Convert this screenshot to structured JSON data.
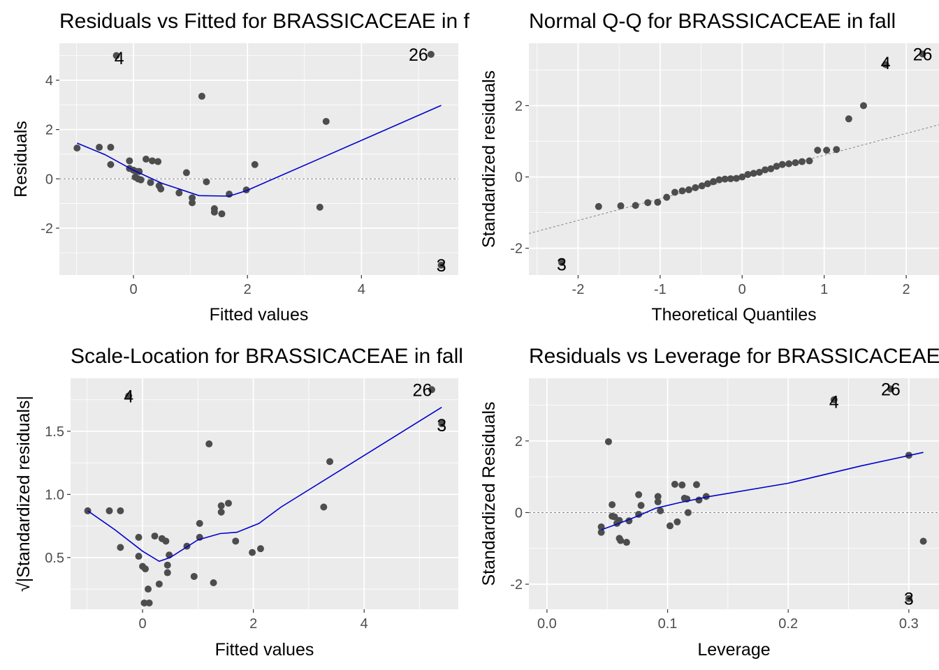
{
  "colors": {
    "panel_bg": "#ebebeb",
    "grid_major": "#ffffff",
    "point": "#4d4d4d",
    "smooth_line": "#0000cd",
    "reference_line": "#808080"
  },
  "chart_data": [
    {
      "id": "residuals-vs-fitted",
      "type": "scatter",
      "title": "Residuals vs Fitted for BRASSICACEAE in fall",
      "xlabel": "Fitted values",
      "ylabel": "Residuals",
      "xlim": [
        -1.3,
        5.7
      ],
      "ylim": [
        -3.9,
        5.5
      ],
      "xticks": [
        0,
        2,
        4
      ],
      "xtick_labels": [
        "0",
        "2",
        "4"
      ],
      "yticks": [
        -2,
        0,
        2,
        4
      ],
      "ytick_labels": [
        "-2",
        "0",
        "2",
        "4"
      ],
      "grid": true,
      "points": [
        {
          "x": -0.99,
          "y": 1.25
        },
        {
          "x": -0.6,
          "y": 1.28
        },
        {
          "x": -0.4,
          "y": 1.28
        },
        {
          "x": -0.4,
          "y": 0.58
        },
        {
          "x": -0.07,
          "y": 0.73
        },
        {
          "x": -0.07,
          "y": 0.42
        },
        {
          "x": 0.0,
          "y": 0.35
        },
        {
          "x": 0.05,
          "y": 0.3
        },
        {
          "x": 0.1,
          "y": 0.3
        },
        {
          "x": 0.03,
          "y": 0.07
        },
        {
          "x": 0.08,
          "y": 0.0
        },
        {
          "x": 0.13,
          "y": -0.04
        },
        {
          "x": 0.22,
          "y": 0.8
        },
        {
          "x": 0.33,
          "y": 0.73
        },
        {
          "x": 0.43,
          "y": 0.7
        },
        {
          "x": 0.3,
          "y": -0.15
        },
        {
          "x": 0.45,
          "y": -0.28
        },
        {
          "x": 0.48,
          "y": -0.41
        },
        {
          "x": 0.8,
          "y": -0.57
        },
        {
          "x": 0.93,
          "y": 0.25
        },
        {
          "x": 1.03,
          "y": -0.77
        },
        {
          "x": 1.03,
          "y": -0.97
        },
        {
          "x": 1.2,
          "y": 3.35
        },
        {
          "x": 1.28,
          "y": -0.12
        },
        {
          "x": 1.42,
          "y": -1.21
        },
        {
          "x": 1.42,
          "y": -1.35
        },
        {
          "x": 1.55,
          "y": -1.42
        },
        {
          "x": 1.68,
          "y": -0.62
        },
        {
          "x": 1.98,
          "y": -0.45
        },
        {
          "x": 2.13,
          "y": 0.58
        },
        {
          "x": 3.27,
          "y": -1.15
        },
        {
          "x": 3.38,
          "y": 2.33
        },
        {
          "x": -0.3,
          "y": 5.0
        },
        {
          "x": 5.22,
          "y": 5.05
        },
        {
          "x": 5.4,
          "y": -3.5
        }
      ],
      "smooth": [
        {
          "x": -0.99,
          "y": 1.45
        },
        {
          "x": -0.5,
          "y": 0.98
        },
        {
          "x": 0.0,
          "y": 0.35
        },
        {
          "x": 0.5,
          "y": -0.18
        },
        {
          "x": 1.15,
          "y": -0.68
        },
        {
          "x": 1.68,
          "y": -0.7
        },
        {
          "x": 1.98,
          "y": -0.48
        },
        {
          "x": 3.3,
          "y": 0.85
        },
        {
          "x": 5.4,
          "y": 2.98
        }
      ],
      "reference": {
        "kind": "hline",
        "y": 0
      },
      "point_labels": [
        {
          "text": "4",
          "x": -0.25,
          "y": 4.9
        },
        {
          "text": "26",
          "x": 5.0,
          "y": 5.05
        },
        {
          "text": "3",
          "x": 5.4,
          "y": -3.5
        }
      ]
    },
    {
      "id": "normal-qq",
      "type": "scatter",
      "title": "Normal Q-Q for BRASSICACEAE in fall",
      "xlabel": "Theoretical Quantiles",
      "ylabel": "Standardized residuals",
      "xlim": [
        -2.6,
        2.4
      ],
      "ylim": [
        -2.75,
        3.75
      ],
      "xticks": [
        -2,
        -1,
        0,
        1,
        2
      ],
      "xtick_labels": [
        "-2",
        "-1",
        "0",
        "1",
        "2"
      ],
      "yticks": [
        -2,
        0,
        2
      ],
      "ytick_labels": [
        "-2",
        "0",
        "2"
      ],
      "grid": true,
      "points": [
        {
          "x": -2.2,
          "y": -2.4
        },
        {
          "x": -1.75,
          "y": -0.83
        },
        {
          "x": -1.48,
          "y": -0.81
        },
        {
          "x": -1.3,
          "y": -0.8
        },
        {
          "x": -1.15,
          "y": -0.72
        },
        {
          "x": -1.03,
          "y": -0.71
        },
        {
          "x": -0.92,
          "y": -0.57
        },
        {
          "x": -0.82,
          "y": -0.43
        },
        {
          "x": -0.73,
          "y": -0.39
        },
        {
          "x": -0.65,
          "y": -0.36
        },
        {
          "x": -0.57,
          "y": -0.3
        },
        {
          "x": -0.49,
          "y": -0.25
        },
        {
          "x": -0.42,
          "y": -0.19
        },
        {
          "x": -0.35,
          "y": -0.13
        },
        {
          "x": -0.28,
          "y": -0.08
        },
        {
          "x": -0.21,
          "y": -0.06
        },
        {
          "x": -0.14,
          "y": -0.05
        },
        {
          "x": -0.07,
          "y": -0.04
        },
        {
          "x": 0.0,
          "y": 0.0
        },
        {
          "x": 0.07,
          "y": 0.07
        },
        {
          "x": 0.14,
          "y": 0.1
        },
        {
          "x": 0.21,
          "y": 0.13
        },
        {
          "x": 0.28,
          "y": 0.2
        },
        {
          "x": 0.35,
          "y": 0.23
        },
        {
          "x": 0.42,
          "y": 0.3
        },
        {
          "x": 0.49,
          "y": 0.35
        },
        {
          "x": 0.57,
          "y": 0.37
        },
        {
          "x": 0.65,
          "y": 0.4
        },
        {
          "x": 0.73,
          "y": 0.43
        },
        {
          "x": 0.82,
          "y": 0.45
        },
        {
          "x": 0.92,
          "y": 0.75
        },
        {
          "x": 1.03,
          "y": 0.75
        },
        {
          "x": 1.15,
          "y": 0.77
        },
        {
          "x": 1.3,
          "y": 1.63
        },
        {
          "x": 1.48,
          "y": 2.0
        },
        {
          "x": 1.75,
          "y": 3.15
        },
        {
          "x": 2.2,
          "y": 3.45
        }
      ],
      "reference": {
        "kind": "line",
        "intercept": 0.0,
        "slope": 0.61
      },
      "point_labels": [
        {
          "text": "3",
          "x": -2.2,
          "y": -2.45
        },
        {
          "text": "4",
          "x": 1.75,
          "y": 3.2
        },
        {
          "text": "26",
          "x": 2.2,
          "y": 3.45
        }
      ]
    },
    {
      "id": "scale-location",
      "type": "scatter",
      "title": "Scale-Location for BRASSICACEAE in fall",
      "xlabel": "Fitted values",
      "ylabel": "√|Standardized residuals|",
      "xlim": [
        -1.3,
        5.7
      ],
      "ylim": [
        0.09,
        1.92
      ],
      "xticks": [
        0,
        2,
        4
      ],
      "xtick_labels": [
        "0",
        "2",
        "4"
      ],
      "yticks": [
        0.5,
        1.0,
        1.5
      ],
      "ytick_labels": [
        "0.5",
        "1.0",
        "1.5"
      ],
      "grid": true,
      "points": [
        {
          "x": -0.99,
          "y": 0.87
        },
        {
          "x": -0.6,
          "y": 0.87
        },
        {
          "x": -0.4,
          "y": 0.87
        },
        {
          "x": -0.4,
          "y": 0.58
        },
        {
          "x": -0.07,
          "y": 0.66
        },
        {
          "x": -0.07,
          "y": 0.51
        },
        {
          "x": 0.0,
          "y": 0.43
        },
        {
          "x": 0.05,
          "y": 0.41
        },
        {
          "x": 0.1,
          "y": 0.25
        },
        {
          "x": 0.03,
          "y": 0.14
        },
        {
          "x": 0.12,
          "y": 0.14
        },
        {
          "x": 0.22,
          "y": 0.67
        },
        {
          "x": 0.35,
          "y": 0.65
        },
        {
          "x": 0.42,
          "y": 0.63
        },
        {
          "x": 0.3,
          "y": 0.29
        },
        {
          "x": 0.45,
          "y": 0.44
        },
        {
          "x": 0.45,
          "y": 0.38
        },
        {
          "x": 0.48,
          "y": 0.52
        },
        {
          "x": 0.8,
          "y": 0.59
        },
        {
          "x": 0.93,
          "y": 0.35
        },
        {
          "x": 1.03,
          "y": 0.77
        },
        {
          "x": 1.03,
          "y": 0.66
        },
        {
          "x": 1.2,
          "y": 1.4
        },
        {
          "x": 1.28,
          "y": 0.3
        },
        {
          "x": 1.42,
          "y": 0.91
        },
        {
          "x": 1.42,
          "y": 0.86
        },
        {
          "x": 1.55,
          "y": 0.93
        },
        {
          "x": 1.68,
          "y": 0.63
        },
        {
          "x": 1.98,
          "y": 0.54
        },
        {
          "x": 2.13,
          "y": 0.57
        },
        {
          "x": 3.27,
          "y": 0.9
        },
        {
          "x": 3.38,
          "y": 1.26
        },
        {
          "x": -0.25,
          "y": 1.78
        },
        {
          "x": 5.22,
          "y": 1.83
        },
        {
          "x": 5.4,
          "y": 1.56
        }
      ],
      "smooth": [
        {
          "x": -0.99,
          "y": 0.87
        },
        {
          "x": -0.5,
          "y": 0.72
        },
        {
          "x": 0.0,
          "y": 0.55
        },
        {
          "x": 0.3,
          "y": 0.47
        },
        {
          "x": 0.5,
          "y": 0.5
        },
        {
          "x": 1.0,
          "y": 0.64
        },
        {
          "x": 1.4,
          "y": 0.69
        },
        {
          "x": 1.7,
          "y": 0.7
        },
        {
          "x": 2.1,
          "y": 0.77
        },
        {
          "x": 2.5,
          "y": 0.9
        },
        {
          "x": 5.4,
          "y": 1.69
        }
      ],
      "point_labels": [
        {
          "text": "4",
          "x": -0.25,
          "y": 1.78
        },
        {
          "text": "26",
          "x": 5.05,
          "y": 1.83
        },
        {
          "text": "3",
          "x": 5.4,
          "y": 1.55
        }
      ]
    },
    {
      "id": "residuals-vs-leverage",
      "type": "scatter",
      "title": "Residuals vs Leverage for BRASSICACEAE in fall",
      "xlabel": "Leverage",
      "ylabel": "Standardized Residuals",
      "xlim": [
        -0.015,
        0.325
      ],
      "ylim": [
        -2.7,
        3.75
      ],
      "xticks": [
        0.0,
        0.1,
        0.2,
        0.3
      ],
      "xtick_labels": [
        "0.0",
        "0.1",
        "0.2",
        "0.3"
      ],
      "yticks": [
        -2,
        0,
        2
      ],
      "ytick_labels": [
        "-2",
        "0",
        "2"
      ],
      "grid": true,
      "points": [
        {
          "x": 0.045,
          "y": -0.4
        },
        {
          "x": 0.045,
          "y": -0.55
        },
        {
          "x": 0.051,
          "y": 1.98
        },
        {
          "x": 0.054,
          "y": 0.22
        },
        {
          "x": 0.054,
          "y": -0.1
        },
        {
          "x": 0.056,
          "y": -0.12
        },
        {
          "x": 0.058,
          "y": -0.3
        },
        {
          "x": 0.06,
          "y": -0.22
        },
        {
          "x": 0.06,
          "y": -0.72
        },
        {
          "x": 0.061,
          "y": -0.78
        },
        {
          "x": 0.066,
          "y": -0.83
        },
        {
          "x": 0.068,
          "y": -0.23
        },
        {
          "x": 0.076,
          "y": 0.5
        },
        {
          "x": 0.076,
          "y": -0.05
        },
        {
          "x": 0.078,
          "y": 0.2
        },
        {
          "x": 0.092,
          "y": 0.45
        },
        {
          "x": 0.092,
          "y": 0.3
        },
        {
          "x": 0.094,
          "y": 0.05
        },
        {
          "x": 0.102,
          "y": -0.37
        },
        {
          "x": 0.106,
          "y": 0.79
        },
        {
          "x": 0.108,
          "y": -0.26
        },
        {
          "x": 0.112,
          "y": 0.77
        },
        {
          "x": 0.114,
          "y": 0.4
        },
        {
          "x": 0.116,
          "y": 0.38
        },
        {
          "x": 0.117,
          "y": 0.0
        },
        {
          "x": 0.124,
          "y": 0.78
        },
        {
          "x": 0.126,
          "y": 0.35
        },
        {
          "x": 0.132,
          "y": 0.45
        },
        {
          "x": 0.3,
          "y": 1.6
        },
        {
          "x": 0.312,
          "y": -0.8
        },
        {
          "x": 0.238,
          "y": 3.15
        },
        {
          "x": 0.285,
          "y": 3.45
        },
        {
          "x": 0.3,
          "y": -2.4
        }
      ],
      "smooth": [
        {
          "x": 0.045,
          "y": -0.48
        },
        {
          "x": 0.06,
          "y": -0.3
        },
        {
          "x": 0.075,
          "y": -0.1
        },
        {
          "x": 0.09,
          "y": 0.12
        },
        {
          "x": 0.11,
          "y": 0.28
        },
        {
          "x": 0.135,
          "y": 0.45
        },
        {
          "x": 0.2,
          "y": 0.82
        },
        {
          "x": 0.26,
          "y": 1.3
        },
        {
          "x": 0.312,
          "y": 1.68
        }
      ],
      "reference": {
        "kind": "hline",
        "y": 0
      },
      "point_labels": [
        {
          "text": "4",
          "x": 0.238,
          "y": 3.1
        },
        {
          "text": "26",
          "x": 0.285,
          "y": 3.45
        },
        {
          "text": "3",
          "x": 0.3,
          "y": -2.4
        }
      ]
    }
  ]
}
